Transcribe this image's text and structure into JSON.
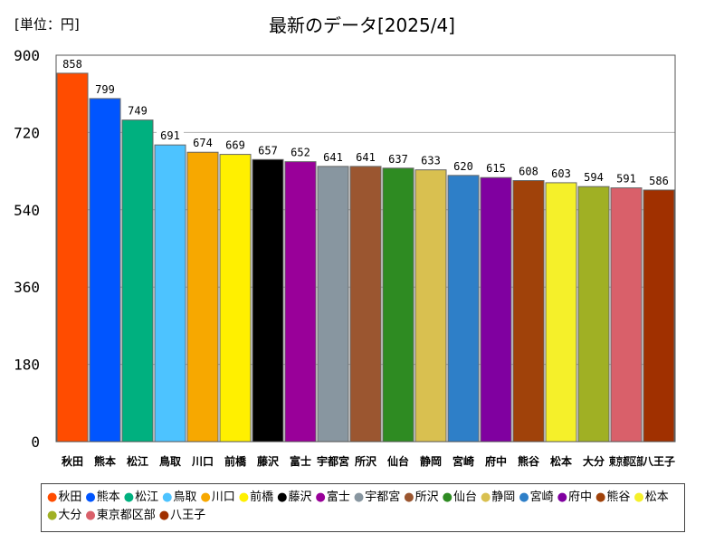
{
  "unit_label": "[単位：円]",
  "chart_data": {
    "type": "bar",
    "title": "最新のデータ[2025/4]",
    "xlabel": "",
    "ylabel": "",
    "ylim": [
      0,
      900
    ],
    "yticks": [
      0,
      180,
      360,
      540,
      720,
      900
    ],
    "grid": true,
    "legend_position": "bottom",
    "categories": [
      "秋田",
      "熊本",
      "松江",
      "鳥取",
      "川口",
      "前橋",
      "藤沢",
      "富士",
      "宇都宮",
      "所沢",
      "仙台",
      "静岡",
      "宮崎",
      "府中",
      "熊谷",
      "松本",
      "大分",
      "東京都区部",
      "八王子"
    ],
    "values": [
      858,
      799,
      749,
      691,
      674,
      669,
      657,
      652,
      641,
      641,
      637,
      633,
      620,
      615,
      608,
      603,
      594,
      591,
      586
    ],
    "colors": [
      "#ff4c00",
      "#0055ff",
      "#00b07f",
      "#4dc3ff",
      "#f7a800",
      "#fff000",
      "#000000",
      "#990099",
      "#8896a0",
      "#9b5630",
      "#2e8b22",
      "#d9c050",
      "#2e7fc8",
      "#8000a0",
      "#a0420a",
      "#f5f02a",
      "#a0b024",
      "#d9606a",
      "#a03000"
    ]
  }
}
